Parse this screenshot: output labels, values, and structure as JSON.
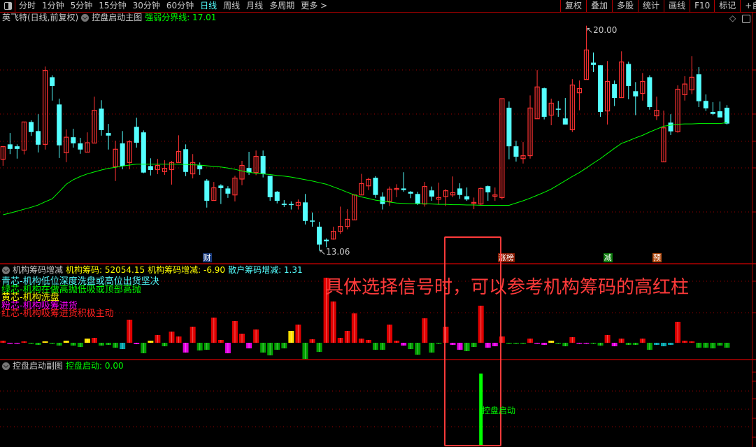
{
  "toolbar": {
    "tabs": [
      "分时",
      "1分钟",
      "5分钟",
      "15分钟",
      "30分钟",
      "60分钟",
      "日线",
      "周线",
      "月线",
      "多周期",
      "更多 >"
    ],
    "active_tab": "日线",
    "buttons": [
      "复权",
      "叠加",
      "多股",
      "统计",
      "画线",
      "F10",
      "标记",
      "+自选"
    ]
  },
  "main_panel": {
    "title": "英飞特(日线,前复权)",
    "indicator_name": "控盘启动主图",
    "line_label": "强弱分界线: 17.01",
    "high_label": "20.00",
    "low_label": "13.06"
  },
  "mid_panel": {
    "indicator_name": "机构筹码增减",
    "v1": "机构筹码: 52054.15",
    "v2": "机构筹码增减: -6.90",
    "v3": "散户筹码增减: 1.31",
    "legend": [
      {
        "text": "青芯-机构低位深度洗盘或高位出货坚决",
        "color": "#54ffff"
      },
      {
        "text": "绿芯-机构在做高抛低吸或顶部高抛",
        "color": "#00ff00"
      },
      {
        "text": "黄芯-机构洗盘",
        "color": "#ffff00"
      },
      {
        "text": "粉芯-机构吸筹进货",
        "color": "#ff00ff"
      },
      {
        "text": "红芯-机构吸筹进货积极主动",
        "color": "#ff2020"
      }
    ]
  },
  "bottom_panel": {
    "indicator_name": "控盘启动副图",
    "value_label": "控盘启动: 0.00",
    "signal_label": "控盘启动"
  },
  "annotation": "具体选择信号时，可以参考机构筹码的高红柱",
  "markers": [
    {
      "i": 29,
      "text": "财",
      "color": "#1a3a7a"
    },
    {
      "i": 71,
      "text": "涨榜",
      "color": "#8b1a00"
    },
    {
      "i": 86,
      "text": "减",
      "color": "#0a7a0a"
    },
    {
      "i": 93,
      "text": "预",
      "color": "#b04a10"
    }
  ],
  "colors": {
    "up": "#ff3232",
    "down": "#54ffff",
    "line": "#00ff00",
    "grid": "#9a0000",
    "border": "#b00000"
  },
  "chart_data": [
    {
      "type": "candlestick",
      "ohlc_order": [
        "open",
        "high",
        "low",
        "close"
      ],
      "price_range": [
        13.06,
        20.0
      ],
      "candles": [
        [
          15.88,
          16.27,
          15.68,
          16.27
        ],
        [
          16.34,
          16.69,
          16.04,
          16.2
        ],
        [
          16.28,
          16.34,
          15.9,
          16.2
        ],
        [
          16.16,
          17.03,
          16.03,
          17.03
        ],
        [
          17.03,
          17.08,
          16.6,
          16.72
        ],
        [
          16.75,
          17.27,
          16.09,
          16.33
        ],
        [
          16.34,
          18.74,
          16.18,
          18.62
        ],
        [
          18.41,
          18.47,
          17.69,
          18.14
        ],
        [
          17.57,
          17.75,
          15.92,
          16.31
        ],
        [
          16.08,
          16.8,
          15.79,
          16.56
        ],
        [
          16.56,
          16.82,
          16.24,
          16.37
        ],
        [
          16.37,
          16.54,
          16.05,
          16.18
        ],
        [
          16.1,
          16.71,
          16.1,
          16.39
        ],
        [
          16.38,
          17.81,
          16.38,
          17.39
        ],
        [
          17.44,
          17.7,
          16.61,
          16.78
        ],
        [
          16.69,
          16.97,
          16.18,
          16.61
        ],
        [
          15.65,
          16.45,
          15.21,
          16.19
        ],
        [
          16.37,
          16.75,
          15.57,
          15.67
        ],
        [
          15.78,
          16.47,
          15.57,
          16.42
        ],
        [
          16.88,
          17.16,
          16.24,
          16.39
        ],
        [
          16.71,
          16.77,
          15.45,
          15.47
        ],
        [
          15.67,
          15.91,
          15.38,
          15.55
        ],
        [
          15.56,
          15.89,
          15.42,
          15.69
        ],
        [
          15.5,
          15.85,
          15.4,
          15.6
        ],
        [
          15.56,
          15.83,
          15.1,
          15.78
        ],
        [
          15.78,
          16.62,
          15.78,
          16.12
        ],
        [
          16.19,
          16.34,
          15.36,
          15.49
        ],
        [
          15.43,
          16.04,
          15.29,
          15.78
        ],
        [
          15.69,
          15.78,
          15.4,
          15.57
        ],
        [
          15.22,
          15.27,
          14.39,
          14.6
        ],
        [
          14.61,
          15.18,
          14.61,
          15.0
        ],
        [
          15.07,
          15.11,
          14.5,
          14.99
        ],
        [
          14.98,
          15.05,
          14.69,
          14.82
        ],
        [
          14.78,
          15.37,
          14.58,
          15.3
        ],
        [
          15.27,
          15.83,
          15.08,
          15.69
        ],
        [
          15.61,
          16.11,
          15.4,
          15.47
        ],
        [
          15.47,
          16.15,
          15.39,
          15.97
        ],
        [
          15.98,
          16.15,
          15.32,
          15.43
        ],
        [
          15.37,
          15.37,
          14.6,
          14.71
        ],
        [
          14.88,
          14.9,
          14.52,
          14.6
        ],
        [
          14.51,
          14.62,
          14.41,
          14.47
        ],
        [
          14.5,
          14.58,
          14.33,
          14.48
        ],
        [
          14.46,
          14.64,
          14.33,
          14.55
        ],
        [
          14.55,
          14.81,
          13.87,
          13.98
        ],
        [
          13.99,
          14.24,
          13.8,
          13.96
        ],
        [
          13.8,
          13.95,
          13.06,
          13.25
        ],
        [
          13.4,
          13.44,
          13.17,
          13.35
        ],
        [
          13.42,
          13.8,
          13.4,
          13.66
        ],
        [
          13.66,
          14.42,
          13.58,
          13.81
        ],
        [
          13.81,
          14.34,
          13.72,
          14.03
        ],
        [
          14.01,
          14.8,
          14.01,
          14.78
        ],
        [
          14.78,
          15.43,
          14.78,
          15.13
        ],
        [
          15.06,
          15.31,
          14.93,
          15.26
        ],
        [
          15.31,
          15.36,
          14.69,
          14.78
        ],
        [
          14.73,
          14.86,
          14.33,
          14.5
        ],
        [
          14.58,
          15.04,
          14.44,
          14.96
        ],
        [
          14.96,
          15.11,
          14.71,
          14.98
        ],
        [
          14.98,
          15.48,
          14.88,
          14.93
        ],
        [
          14.88,
          14.9,
          14.68,
          14.82
        ],
        [
          14.81,
          14.88,
          14.47,
          14.51
        ],
        [
          14.5,
          15.18,
          14.42,
          15.04
        ],
        [
          14.92,
          15.04,
          14.6,
          14.73
        ],
        [
          14.65,
          15.16,
          14.48,
          14.7
        ],
        [
          14.73,
          14.96,
          14.44,
          14.91
        ],
        [
          14.78,
          15.35,
          14.71,
          14.85
        ],
        [
          14.98,
          15.14,
          14.66,
          14.78
        ],
        [
          14.74,
          15.01,
          14.6,
          14.64
        ],
        [
          14.53,
          14.7,
          14.34,
          14.55
        ],
        [
          14.5,
          15.01,
          14.46,
          14.98
        ],
        [
          15.05,
          15.07,
          14.6,
          14.86
        ],
        [
          14.74,
          15.01,
          14.6,
          14.78
        ],
        [
          14.7,
          17.75,
          14.64,
          17.75
        ],
        [
          17.47,
          17.66,
          15.88,
          16.28
        ],
        [
          16.28,
          16.45,
          15.81,
          15.96
        ],
        [
          15.9,
          16.41,
          15.75,
          15.99
        ],
        [
          15.99,
          17.85,
          15.9,
          17.46
        ],
        [
          17.13,
          18.63,
          17.13,
          18.11
        ],
        [
          18.07,
          18.09,
          17.11,
          17.19
        ],
        [
          17.24,
          17.75,
          16.93,
          17.61
        ],
        [
          17.44,
          17.68,
          17.19,
          17.41
        ],
        [
          17.14,
          17.77,
          16.95,
          16.95
        ],
        [
          16.79,
          18.35,
          16.72,
          18.17
        ],
        [
          17.93,
          18.31,
          17.39,
          18.06
        ],
        [
          18.34,
          20.0,
          18.34,
          19.25
        ],
        [
          18.86,
          19.17,
          18.57,
          18.79
        ],
        [
          18.78,
          18.78,
          17.19,
          17.34
        ],
        [
          17.37,
          18.91,
          16.95,
          18.28
        ],
        [
          18.2,
          18.31,
          17.52,
          17.77
        ],
        [
          17.78,
          19.21,
          17.78,
          18.88
        ],
        [
          18.82,
          18.89,
          17.73,
          18.14
        ],
        [
          17.98,
          18.26,
          17.24,
          17.82
        ],
        [
          17.91,
          18.54,
          17.69,
          18.28
        ],
        [
          18.41,
          18.47,
          17.41,
          17.49
        ],
        [
          17.22,
          17.81,
          17.09,
          17.39
        ],
        [
          15.8,
          17.38,
          15.8,
          16.85
        ],
        [
          17.01,
          17.27,
          16.63,
          16.74
        ],
        [
          16.73,
          18.16,
          16.7,
          18.04
        ],
        [
          17.87,
          18.44,
          17.69,
          18.2
        ],
        [
          18.02,
          19.06,
          17.89,
          18.41
        ],
        [
          18.5,
          18.72,
          17.49,
          17.67
        ],
        [
          17.68,
          17.88,
          17.37,
          17.45
        ],
        [
          17.34,
          17.64,
          17.24,
          17.28
        ],
        [
          17.36,
          17.66,
          17.17,
          17.17
        ],
        [
          17.47,
          17.55,
          16.95,
          16.98
        ]
      ],
      "line": {
        "name": "强弱分界线",
        "values": [
          14.17,
          14.22,
          14.28,
          14.34,
          14.4,
          14.47,
          14.57,
          14.66,
          14.88,
          15.11,
          15.25,
          15.35,
          15.43,
          15.49,
          15.55,
          15.6,
          15.63,
          15.67,
          15.7,
          15.73,
          15.73,
          15.73,
          15.73,
          15.73,
          15.73,
          15.73,
          15.72,
          15.71,
          15.7,
          15.68,
          15.66,
          15.64,
          15.61,
          15.57,
          15.52,
          15.48,
          15.45,
          15.43,
          15.41,
          15.38,
          15.36,
          15.33,
          15.29,
          15.25,
          15.21,
          15.16,
          15.11,
          15.03,
          14.95,
          14.86,
          14.78,
          14.72,
          14.67,
          14.62,
          14.59,
          14.56,
          14.53,
          14.52,
          14.51,
          14.51,
          14.51,
          14.5,
          14.49,
          14.49,
          14.48,
          14.48,
          14.47,
          14.47,
          14.46,
          14.46,
          14.46,
          14.46,
          14.46,
          14.53,
          14.6,
          14.68,
          14.77,
          14.86,
          14.96,
          15.09,
          15.22,
          15.35,
          15.47,
          15.61,
          15.76,
          15.9,
          16.06,
          16.22,
          16.37,
          16.45,
          16.54,
          16.62,
          16.72,
          16.81,
          16.9,
          16.93,
          16.96,
          16.97,
          16.97,
          16.98,
          16.98,
          16.98,
          16.98,
          17.01
        ]
      }
    },
    {
      "type": "bar",
      "name": "机构筹码增减",
      "values": [
        3,
        -1,
        -1,
        2,
        -1,
        -3,
        2,
        -1,
        -4,
        3,
        -4,
        -6,
        6,
        7,
        -4,
        -3,
        -7,
        -9,
        33,
        -2,
        -15,
        3,
        11,
        -5,
        16,
        9,
        -14,
        23,
        -11,
        -10,
        36,
        4,
        -15,
        31,
        13,
        -8,
        19,
        -14,
        -18,
        -10,
        -8,
        17,
        26,
        -23,
        5,
        -13,
        93,
        59,
        7,
        17,
        42,
        6,
        4,
        -10,
        -10,
        26,
        3,
        -4,
        -9,
        -17,
        35,
        -14,
        -1,
        23,
        -3,
        -10,
        -12,
        -6,
        53,
        -7,
        -5,
        9,
        -1,
        -1,
        -1,
        6,
        -1,
        -3,
        3,
        -1,
        -5,
        8,
        -1,
        -1,
        -1,
        -4,
        11,
        -5,
        6,
        -3,
        -3,
        6,
        -10,
        -3,
        -5,
        -3,
        30,
        3,
        2,
        -7,
        -7,
        -8,
        -4,
        -7
      ],
      "core_colors": [
        "red",
        "pink",
        "pink",
        "red",
        "green",
        "green",
        "yellow",
        "green",
        "green",
        "yellow",
        "green",
        "green",
        "yellow",
        "red",
        "green",
        "green",
        "green",
        "cyan",
        "red",
        "pink",
        "green",
        "yellow",
        "red",
        "green",
        "red",
        "red",
        "pink",
        "red",
        "green",
        "green",
        "red",
        "red",
        "pink",
        "red",
        "red",
        "pink",
        "red",
        "green",
        "green",
        "green",
        "green",
        "yellow",
        "red",
        "green",
        "red",
        "green",
        "red",
        "red",
        "red",
        "red",
        "red",
        "red",
        "red",
        "green",
        "green",
        "red",
        "red",
        "pink",
        "green",
        "green",
        "red",
        "green",
        "green",
        "red",
        "pink",
        "pink",
        "green",
        "green",
        "red",
        "pink",
        "pink",
        "red",
        "green",
        "green",
        "green",
        "red",
        "pink",
        "pink",
        "yellow",
        "green",
        "green",
        "red",
        "pink",
        "pink",
        "green",
        "green",
        "red",
        "pink",
        "red",
        "green",
        "green",
        "red",
        "green",
        "cyan",
        "cyan",
        "cyan",
        "red",
        "red",
        "red",
        "green",
        "green",
        "green",
        "green",
        "green"
      ],
      "color_map": {
        "red": "#e00000",
        "pink": "#e000e0",
        "green": "#00a000",
        "yellow": "#ffe000",
        "cyan": "#00a0a8"
      }
    },
    {
      "type": "bar",
      "name": "控盘启动",
      "signals": [
        {
          "i": 68,
          "value": 1
        }
      ],
      "color": "#00ff00"
    }
  ]
}
